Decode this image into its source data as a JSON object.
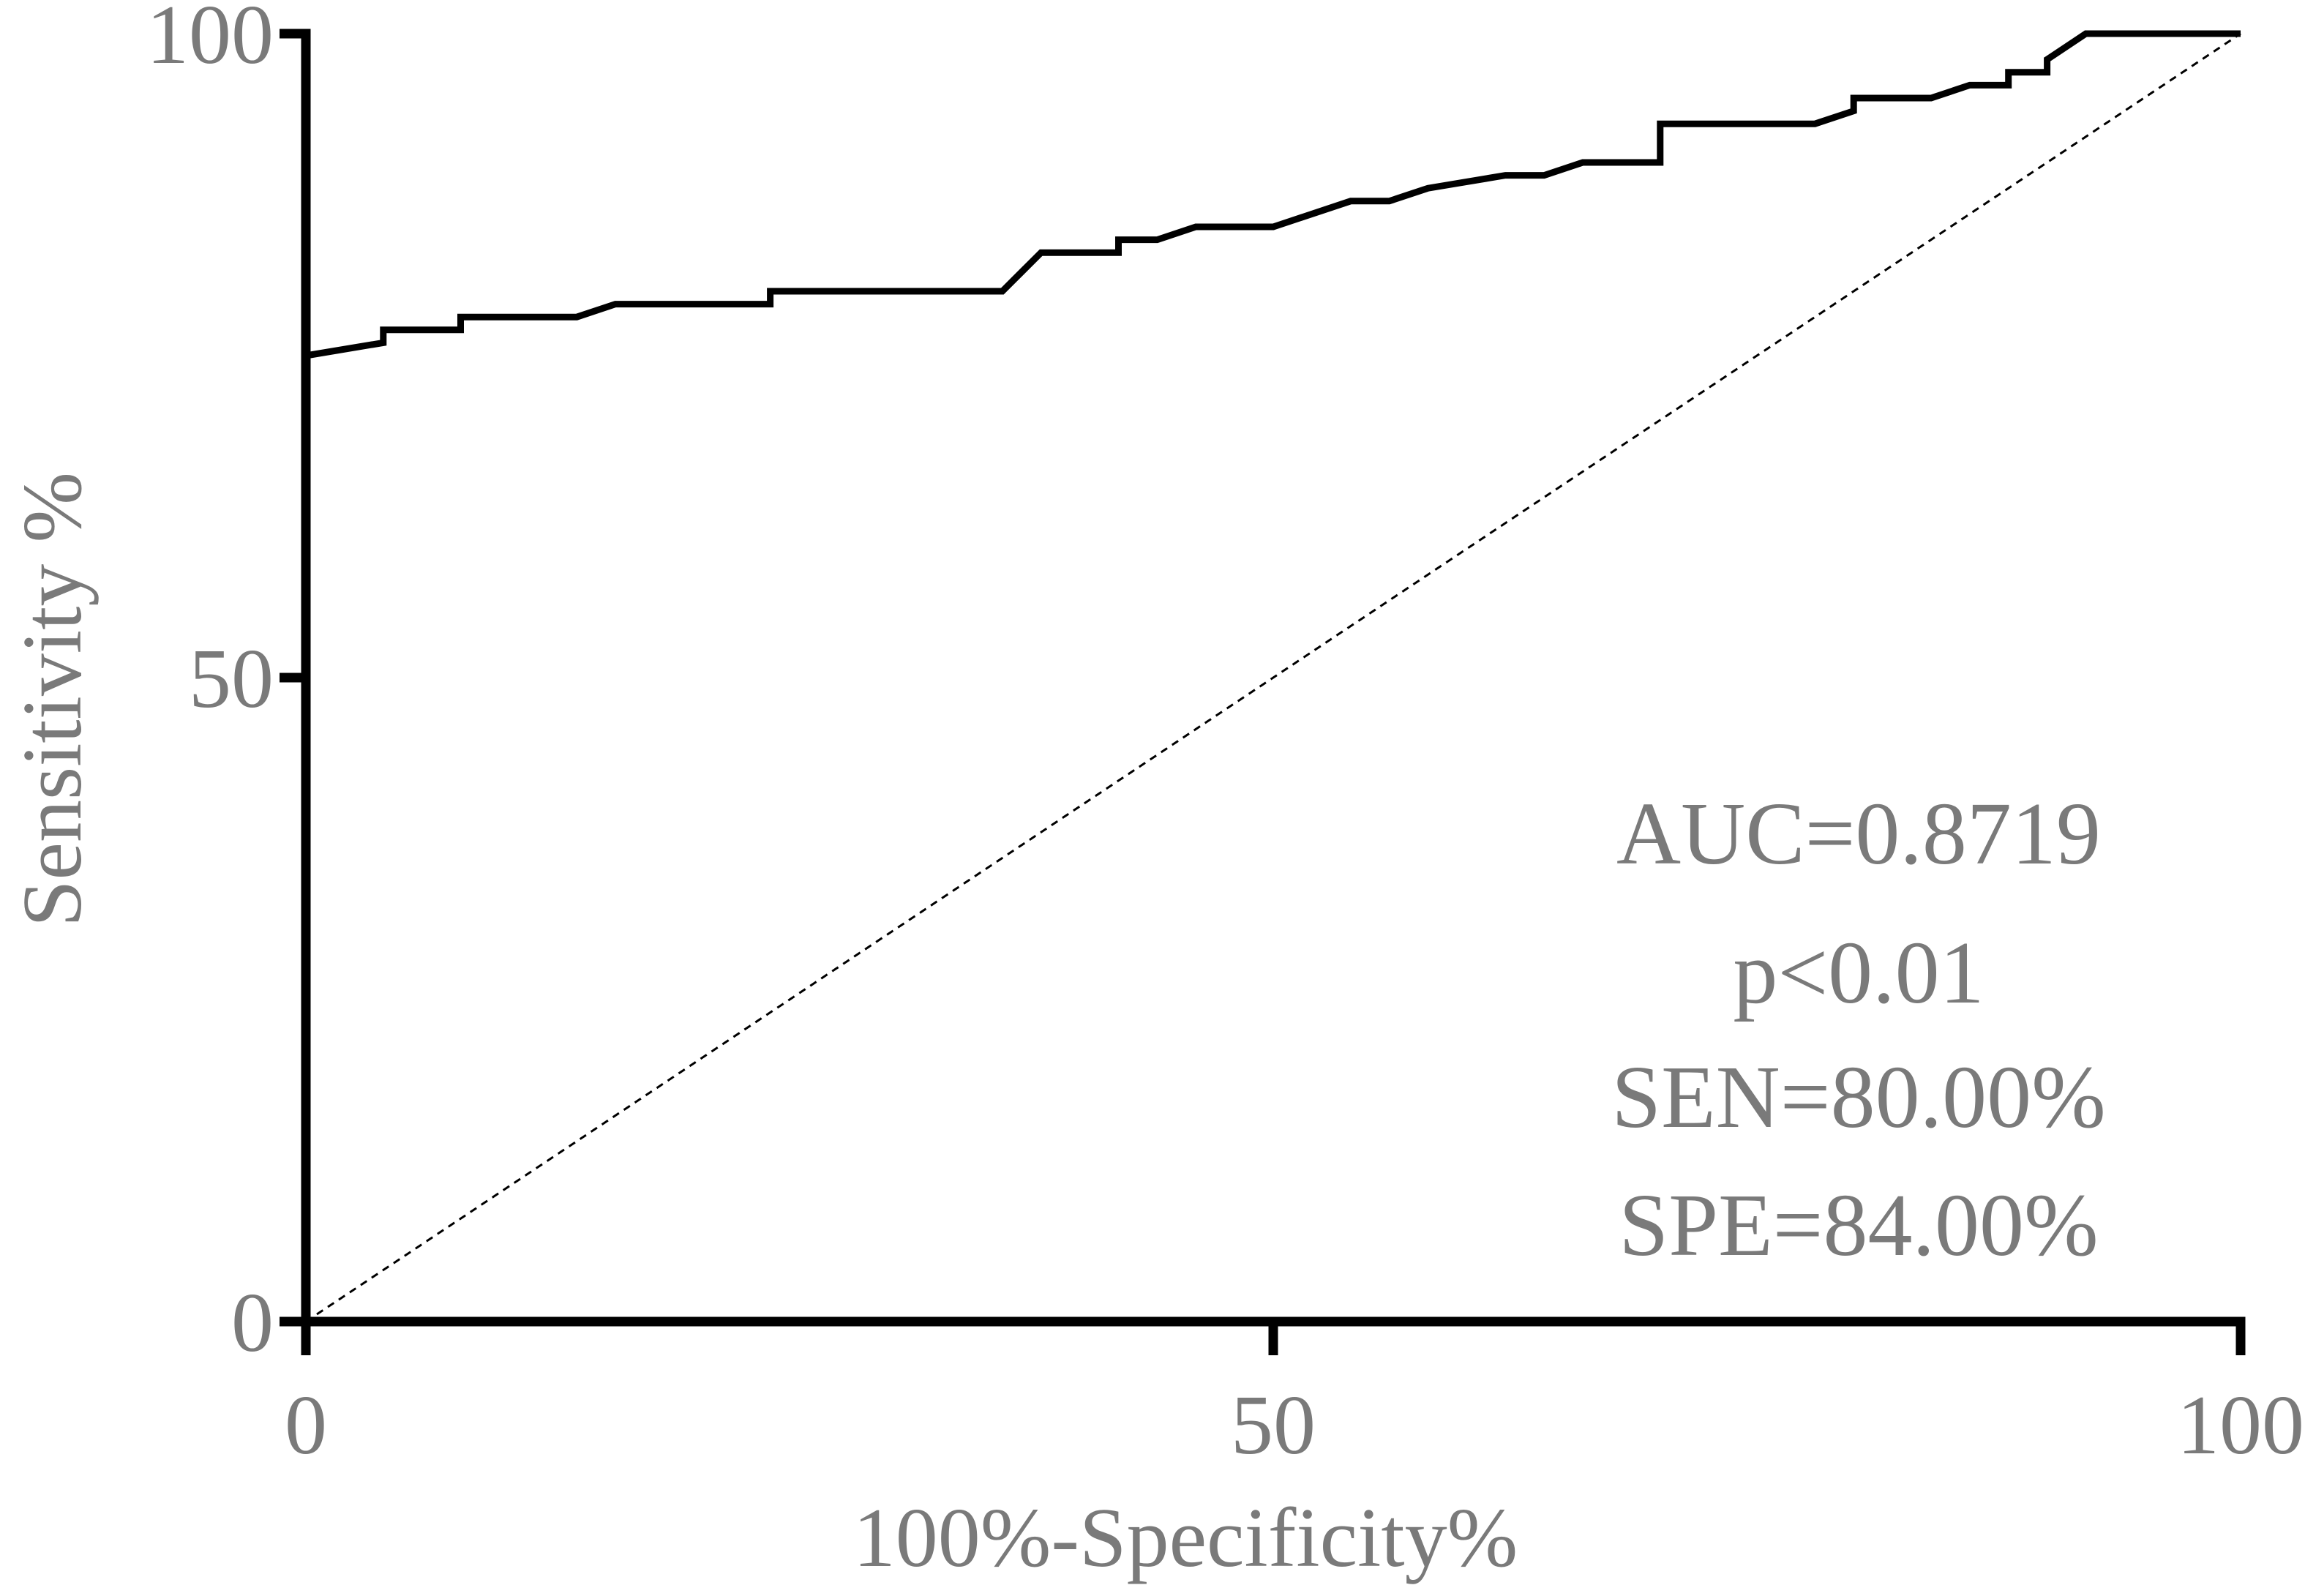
{
  "chart_data": {
    "type": "line",
    "title": "",
    "xlabel": "100%-Specificity%",
    "ylabel": "Sensitivity %",
    "xlim": [
      0,
      100
    ],
    "ylim": [
      0,
      100
    ],
    "x_ticks": [
      "0",
      "50",
      "100"
    ],
    "y_ticks": [
      "0",
      "50",
      "100"
    ],
    "grid": false,
    "legend": "none",
    "series": [
      {
        "x": [
          0,
          0,
          4,
          4,
          8,
          8,
          14,
          16,
          24,
          24,
          36,
          38,
          42,
          42,
          44,
          46,
          50,
          54,
          56,
          58,
          62,
          64,
          66,
          70,
          70,
          78,
          80,
          80,
          84,
          86,
          88,
          88,
          90,
          90,
          92,
          100
        ],
        "y": [
          0,
          75,
          76,
          77,
          77,
          78,
          78,
          79,
          79,
          80,
          80,
          83,
          83,
          84,
          84,
          85,
          85,
          87,
          87,
          88,
          89,
          89,
          90,
          90,
          93,
          93,
          94,
          95,
          95,
          96,
          96,
          97,
          97,
          98,
          100,
          100
        ]
      },
      {
        "x": [
          0,
          100
        ],
        "y": [
          0,
          100
        ]
      }
    ],
    "annotations": [
      "AUC=0.8719",
      "p<0.01",
      "SEN=80.00%",
      "SPE=84.00%"
    ],
    "colors": {
      "axis": "#000000",
      "curve": "#000000",
      "text": "#7a7a7a"
    }
  }
}
